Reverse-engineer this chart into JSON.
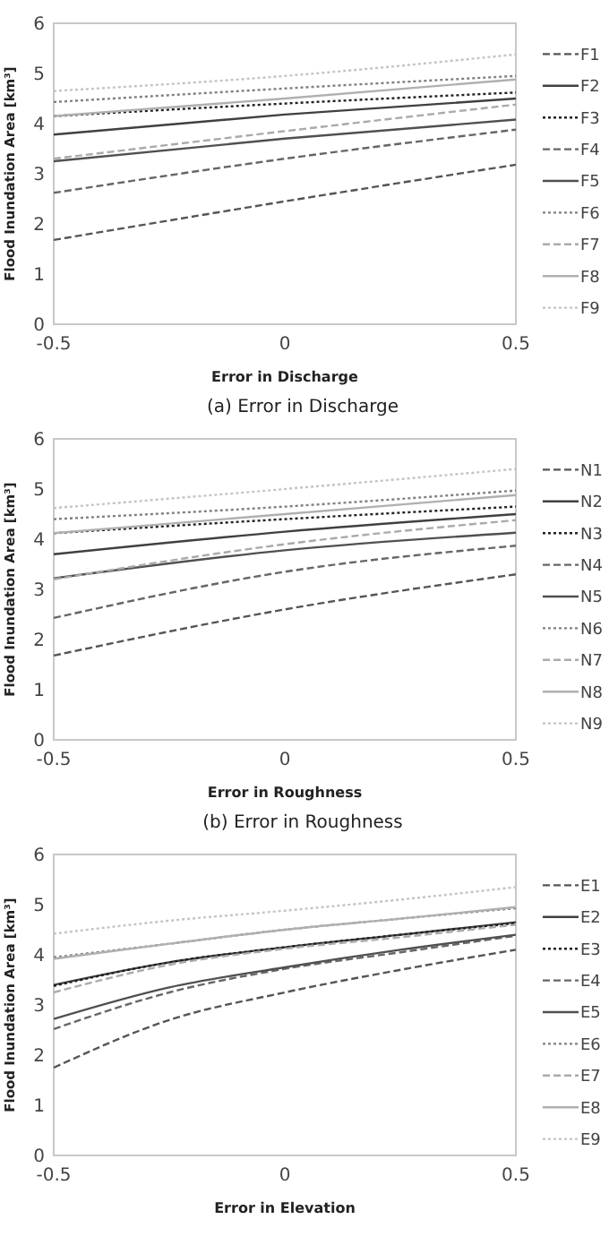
{
  "chart_data": [
    {
      "type": "line",
      "title": "(a) Error in Discharge",
      "xlabel": "Error in Discharge",
      "ylabel": "Flood Inundation Area [km³]",
      "x": [
        -0.5,
        0,
        0.5
      ],
      "xlim": [
        -0.5,
        0.5
      ],
      "xticks": [
        -0.5,
        0,
        0.5
      ],
      "ylim": [
        0,
        6
      ],
      "yticks": [
        0,
        1,
        2,
        3,
        4,
        5,
        6
      ],
      "legend": "right",
      "series": [
        {
          "name": "F1",
          "color": "#555555",
          "line_style": "dashed",
          "values": [
            1.68,
            2.45,
            3.18
          ]
        },
        {
          "name": "F2",
          "color": "#404040",
          "line_style": "solid",
          "values": [
            3.78,
            4.18,
            4.5
          ]
        },
        {
          "name": "F3",
          "color": "#202020",
          "line_style": "dotted",
          "values": [
            4.15,
            4.4,
            4.62
          ]
        },
        {
          "name": "F4",
          "color": "#666666",
          "line_style": "dashed",
          "values": [
            2.62,
            3.3,
            3.88
          ]
        },
        {
          "name": "F5",
          "color": "#505050",
          "line_style": "solid",
          "values": [
            3.25,
            3.7,
            4.08
          ]
        },
        {
          "name": "F6",
          "color": "#808080",
          "line_style": "dotted",
          "values": [
            4.43,
            4.7,
            4.95
          ]
        },
        {
          "name": "F7",
          "color": "#aaaaaa",
          "line_style": "dashed",
          "values": [
            3.3,
            3.85,
            4.38
          ]
        },
        {
          "name": "F8",
          "color": "#b0b0b0",
          "line_style": "solid",
          "values": [
            4.15,
            4.5,
            4.88
          ]
        },
        {
          "name": "F9",
          "color": "#c4c4c4",
          "line_style": "dotted",
          "values": [
            4.65,
            4.95,
            5.38
          ]
        }
      ]
    },
    {
      "type": "line",
      "title": "(b) Error in Roughness",
      "xlabel": "Error in Roughness",
      "ylabel": "Flood Inundation Area [km³]",
      "x": [
        -0.5,
        0,
        0.5
      ],
      "xlim": [
        -0.5,
        0.5
      ],
      "xticks": [
        -0.5,
        0,
        0.5
      ],
      "ylim": [
        0,
        6
      ],
      "yticks": [
        0,
        1,
        2,
        3,
        4,
        5,
        6
      ],
      "legend": "right",
      "series": [
        {
          "name": "N1",
          "color": "#555555",
          "line_style": "dashed",
          "values": [
            1.68,
            2.6,
            3.3
          ]
        },
        {
          "name": "N2",
          "color": "#404040",
          "line_style": "solid",
          "values": [
            3.7,
            4.15,
            4.5
          ]
        },
        {
          "name": "N3",
          "color": "#202020",
          "line_style": "dotted",
          "values": [
            4.12,
            4.4,
            4.65
          ]
        },
        {
          "name": "N4",
          "color": "#666666",
          "line_style": "dashed",
          "values": [
            2.43,
            3.35,
            3.87
          ]
        },
        {
          "name": "N5",
          "color": "#505050",
          "line_style": "solid",
          "values": [
            3.22,
            3.78,
            4.13
          ]
        },
        {
          "name": "N6",
          "color": "#808080",
          "line_style": "dotted",
          "values": [
            4.4,
            4.65,
            4.97
          ]
        },
        {
          "name": "N7",
          "color": "#aaaaaa",
          "line_style": "dashed",
          "values": [
            3.2,
            3.9,
            4.38
          ]
        },
        {
          "name": "N8",
          "color": "#b0b0b0",
          "line_style": "solid",
          "values": [
            4.12,
            4.5,
            4.88
          ]
        },
        {
          "name": "N9",
          "color": "#c4c4c4",
          "line_style": "dotted",
          "values": [
            4.62,
            5.0,
            5.4
          ]
        }
      ]
    },
    {
      "type": "line",
      "xlabel": "Error in Elevation",
      "ylabel": "Flood Inundation Area [km³]",
      "x": [
        -0.5,
        -0.25,
        0,
        0.25,
        0.5
      ],
      "xlim": [
        -0.5,
        0.5
      ],
      "xticks": [
        -0.5,
        0,
        0.5
      ],
      "ylim": [
        0,
        6
      ],
      "yticks": [
        0,
        1,
        2,
        3,
        4,
        5,
        6
      ],
      "legend": "right",
      "series": [
        {
          "name": "E1",
          "color": "#555555",
          "line_style": "dashed",
          "values": [
            1.75,
            2.7,
            3.25,
            3.7,
            4.1
          ]
        },
        {
          "name": "E2",
          "color": "#404040",
          "line_style": "solid",
          "values": [
            3.4,
            3.85,
            4.15,
            4.4,
            4.65
          ]
        },
        {
          "name": "E3",
          "color": "#202020",
          "line_style": "dotted",
          "values": [
            3.38,
            3.85,
            4.15,
            4.4,
            4.63
          ]
        },
        {
          "name": "E4",
          "color": "#666666",
          "line_style": "dashed",
          "values": [
            2.52,
            3.25,
            3.72,
            4.05,
            4.38
          ]
        },
        {
          "name": "E5",
          "color": "#505050",
          "line_style": "solid",
          "values": [
            2.72,
            3.35,
            3.75,
            4.1,
            4.4
          ]
        },
        {
          "name": "E6",
          "color": "#808080",
          "line_style": "dotted",
          "values": [
            3.95,
            4.22,
            4.5,
            4.72,
            4.93
          ]
        },
        {
          "name": "E7",
          "color": "#aaaaaa",
          "line_style": "dashed",
          "values": [
            3.25,
            3.8,
            4.12,
            4.35,
            4.6
          ]
        },
        {
          "name": "E8",
          "color": "#b0b0b0",
          "line_style": "solid",
          "values": [
            3.92,
            4.22,
            4.5,
            4.72,
            4.95
          ]
        },
        {
          "name": "E9",
          "color": "#c4c4c4",
          "line_style": "dotted",
          "values": [
            4.42,
            4.68,
            4.88,
            5.1,
            5.35
          ]
        }
      ]
    }
  ]
}
